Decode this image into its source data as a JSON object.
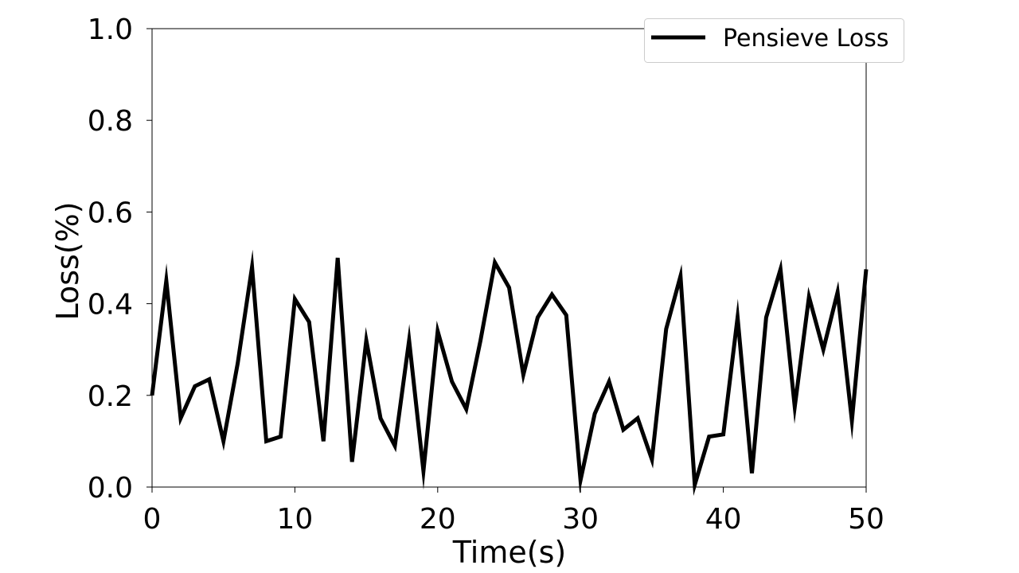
{
  "chart_data": {
    "type": "line",
    "title": "",
    "xlabel": "Time(s)",
    "ylabel": "Loss(%)",
    "xlim": [
      0,
      50
    ],
    "ylim": [
      0.0,
      1.0
    ],
    "xticks": [
      0,
      10,
      20,
      30,
      40,
      50
    ],
    "yticks": [
      0.0,
      0.2,
      0.4,
      0.6,
      0.8,
      1.0
    ],
    "xtick_labels": [
      "0",
      "10",
      "20",
      "30",
      "40",
      "50"
    ],
    "ytick_labels": [
      "0.0",
      "0.2",
      "0.4",
      "0.6",
      "0.8",
      "1.0"
    ],
    "grid": false,
    "legend_position": "top-right",
    "series": [
      {
        "name": "Pensieve Loss",
        "color": "#000000",
        "x": [
          0,
          1,
          2,
          3,
          4,
          5,
          6,
          7,
          8,
          9,
          10,
          11,
          12,
          13,
          14,
          15,
          16,
          17,
          18,
          19,
          20,
          21,
          22,
          23,
          24,
          25,
          26,
          27,
          28,
          29,
          30,
          31,
          32,
          33,
          34,
          35,
          36,
          37,
          38,
          39,
          40,
          41,
          42,
          43,
          44,
          45,
          46,
          47,
          48,
          49,
          50
        ],
        "y": [
          0.2,
          0.45,
          0.15,
          0.22,
          0.235,
          0.1,
          0.27,
          0.48,
          0.1,
          0.11,
          0.41,
          0.36,
          0.1,
          0.5,
          0.055,
          0.32,
          0.15,
          0.09,
          0.32,
          0.035,
          0.34,
          0.23,
          0.17,
          0.32,
          0.49,
          0.435,
          0.245,
          0.37,
          0.42,
          0.375,
          0.015,
          0.16,
          0.23,
          0.125,
          0.15,
          0.06,
          0.345,
          0.46,
          0.005,
          0.11,
          0.115,
          0.37,
          0.03,
          0.37,
          0.475,
          0.175,
          0.415,
          0.3,
          0.425,
          0.145,
          0.475
        ]
      }
    ]
  }
}
